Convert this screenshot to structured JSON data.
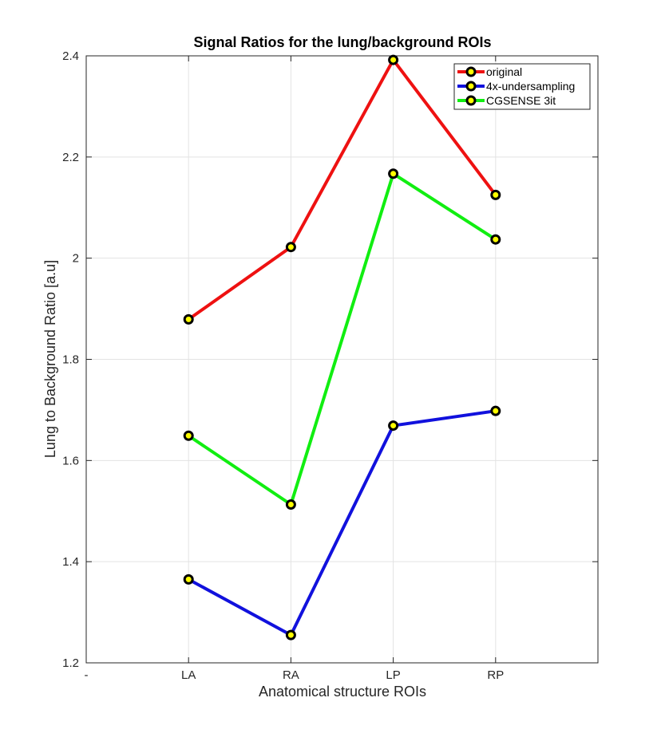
{
  "chart_data": {
    "type": "line",
    "title": "Signal Ratios for the lung/background ROIs",
    "xlabel": "Anatomical structure ROIs",
    "ylabel": "Lung to Background Ratio [a.u]",
    "x_tick_labels": [
      "-",
      "LA",
      "RA",
      "LP",
      "RP"
    ],
    "categories": [
      "LA",
      "RA",
      "LP",
      "RP"
    ],
    "xlim": [
      0,
      5
    ],
    "ylim": [
      1.2,
      2.4
    ],
    "y_ticks": [
      1.2,
      1.4,
      1.6,
      1.8,
      2,
      2.2,
      2.4
    ],
    "y_tick_labels": [
      "1.2",
      "1.4",
      "1.6",
      "1.8",
      "2",
      "2.2",
      "2.4"
    ],
    "grid": true,
    "legend_position": "top-right",
    "series": [
      {
        "name": "original",
        "color": "#ee1111",
        "values": [
          1.879,
          2.022,
          2.392,
          2.125
        ]
      },
      {
        "name": "4x-undersampling",
        "color": "#1111dd",
        "values": [
          1.365,
          1.255,
          1.669,
          1.698
        ]
      },
      {
        "name": "CGSENSE 3it",
        "color": "#11ee11",
        "values": [
          1.649,
          1.513,
          2.167,
          2.037
        ]
      }
    ],
    "marker": {
      "face_color": "#ffff00",
      "edge_color": "#000000"
    }
  }
}
